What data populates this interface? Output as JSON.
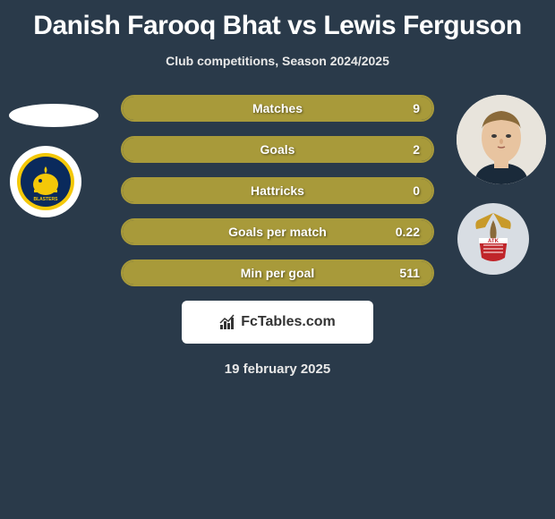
{
  "title": "Danish Farooq Bhat vs Lewis Ferguson",
  "subtitle": "Club competitions, Season 2024/2025",
  "brand": "FcTables.com",
  "date": "19 february 2025",
  "colors": {
    "bar_border": "#a89a3a",
    "bar_fill": "#a89a3a",
    "left_team_bg": "#ffffff",
    "right_team_bg": "#d8dde3"
  },
  "stats": [
    {
      "label": "Matches",
      "value": "9",
      "fill_pct": 100
    },
    {
      "label": "Goals",
      "value": "2",
      "fill_pct": 100
    },
    {
      "label": "Hattricks",
      "value": "0",
      "fill_pct": 100
    },
    {
      "label": "Goals per match",
      "value": "0.22",
      "fill_pct": 100
    },
    {
      "label": "Min per goal",
      "value": "511",
      "fill_pct": 100
    }
  ],
  "left_team_name": "Kerala Blasters",
  "right_team_name": "ATK"
}
